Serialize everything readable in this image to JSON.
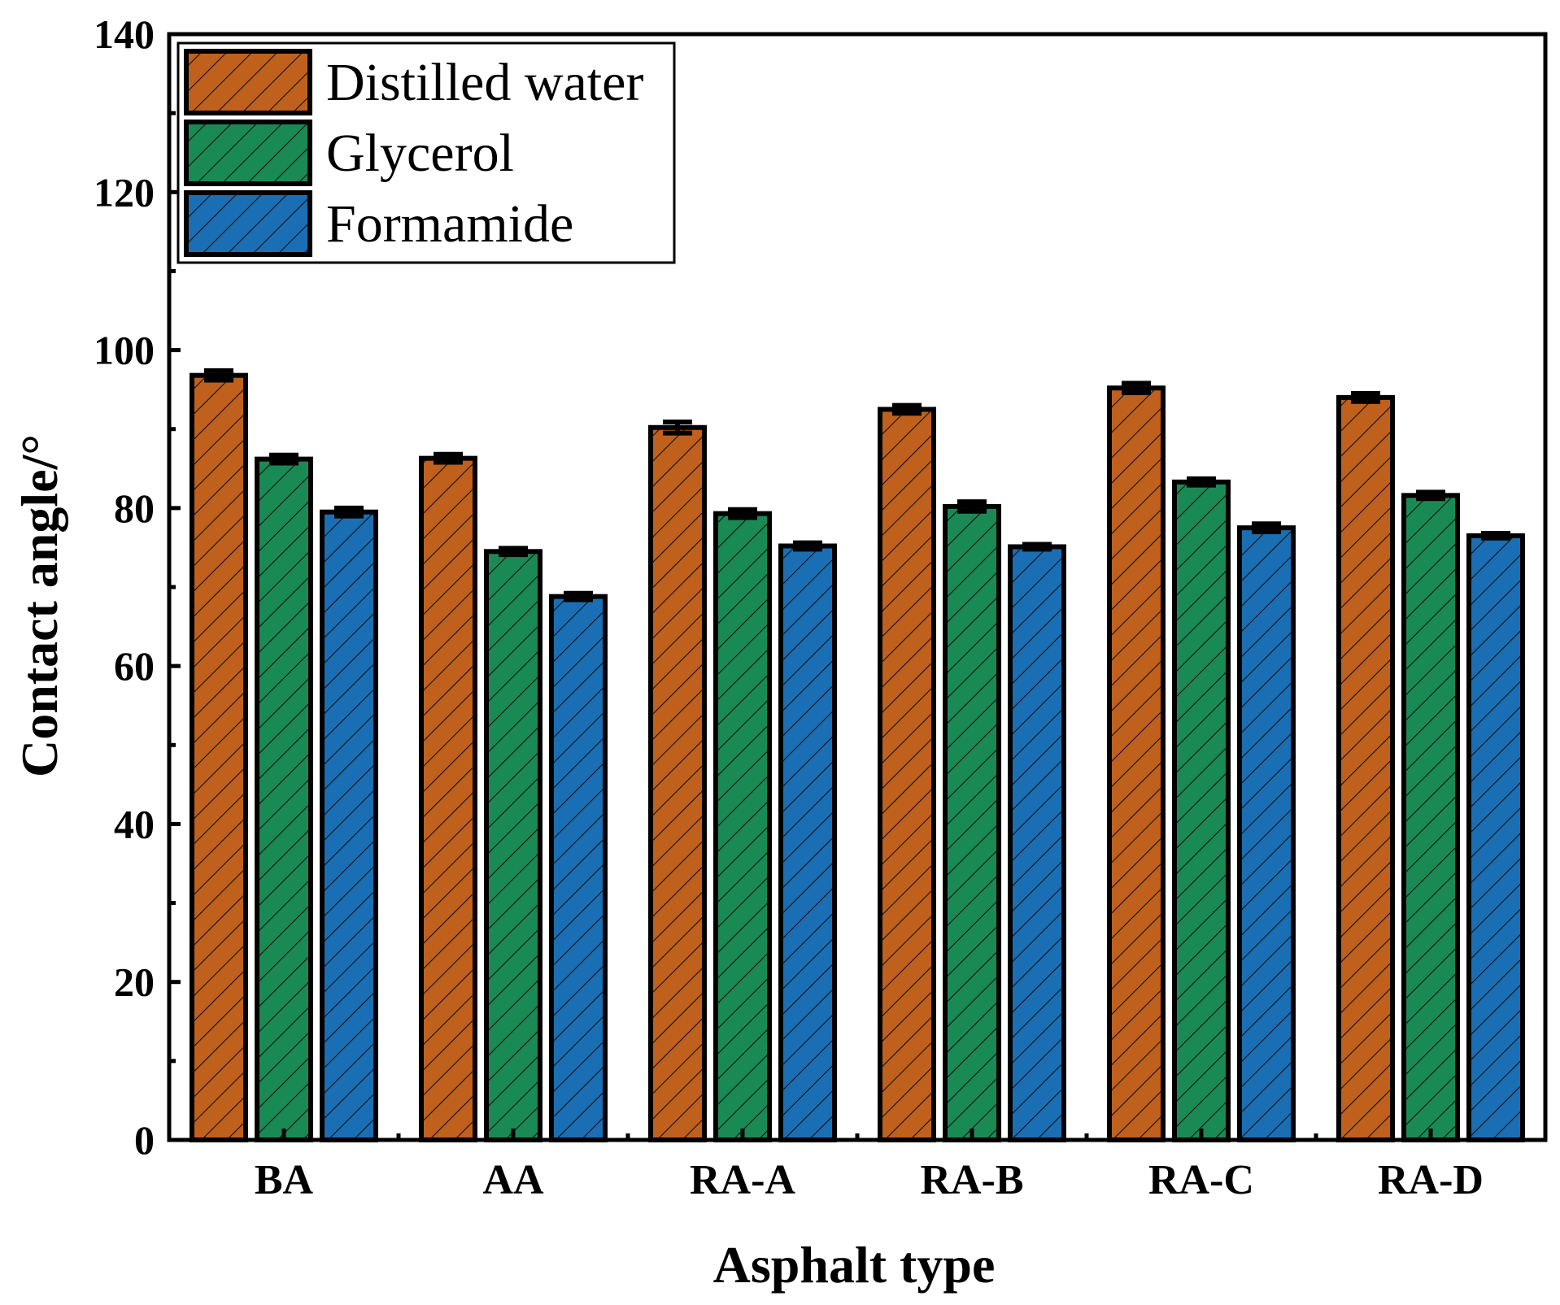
{
  "chart_data": {
    "type": "bar",
    "title": "",
    "xlabel": "Asphalt type",
    "ylabel": "Contact angle/°",
    "ylim": [
      0,
      140
    ],
    "yticks": [
      0,
      20,
      40,
      60,
      80,
      100,
      120,
      140
    ],
    "categories": [
      "BA",
      "AA",
      "RA-A",
      "RA-B",
      "RA-C",
      "RA-D"
    ],
    "series": [
      {
        "name": "Distilled water",
        "color": "#c0601d",
        "values": [
          96.8,
          86.3,
          90.2,
          92.5,
          95.2,
          94.0
        ],
        "errors": [
          0.6,
          0.5,
          0.7,
          0.5,
          0.6,
          0.5
        ]
      },
      {
        "name": "Glycerol",
        "color": "#1a8a55",
        "values": [
          86.2,
          74.5,
          79.3,
          80.2,
          83.3,
          81.6
        ],
        "errors": [
          0.5,
          0.4,
          0.5,
          0.6,
          0.4,
          0.4
        ]
      },
      {
        "name": "Formamide",
        "color": "#1a6fb4",
        "values": [
          79.5,
          68.8,
          75.2,
          75.1,
          77.5,
          76.5
        ],
        "errors": [
          0.5,
          0.4,
          0.4,
          0.3,
          0.5,
          0.3
        ]
      }
    ],
    "legend": {
      "position": "top-left",
      "entries": [
        "Distilled water",
        "Glycerol",
        "Formamide"
      ]
    },
    "pattern": "diagonal-hatch",
    "grid": false
  }
}
